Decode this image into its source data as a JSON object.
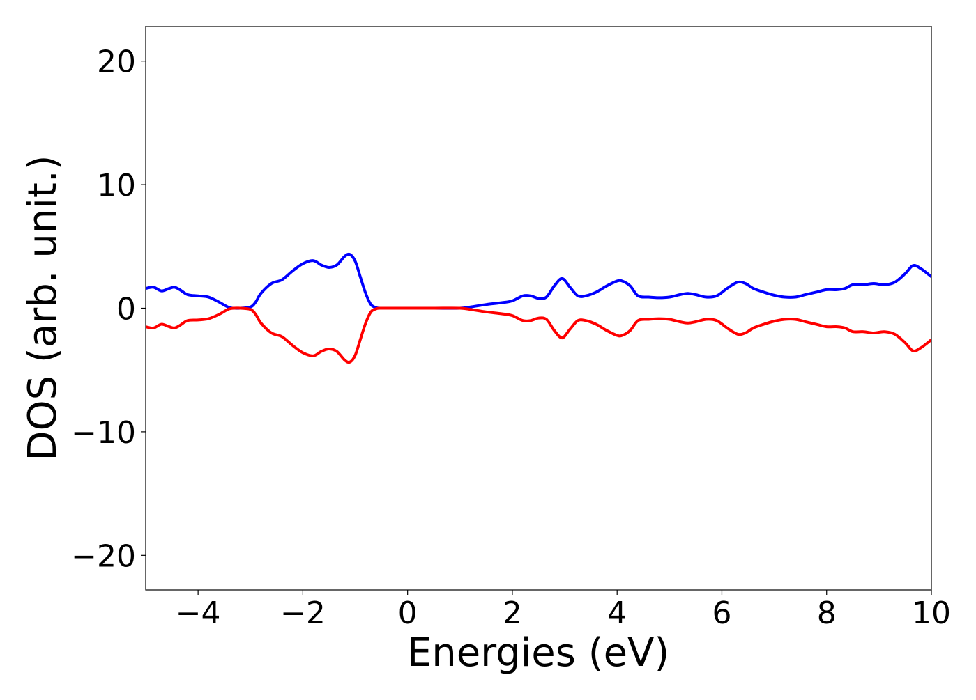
{
  "chart_data": {
    "type": "line",
    "title": "",
    "xlabel": "Energies (eV)",
    "ylabel": "DOS (arb. unit.)",
    "xlim": [
      -5,
      10
    ],
    "ylim": [
      -22.8,
      22.8
    ],
    "xticks": [
      -4,
      -2,
      0,
      2,
      4,
      6,
      8,
      10
    ],
    "xtick_labels": [
      "−4",
      "−2",
      "0",
      "2",
      "4",
      "6",
      "8",
      "10"
    ],
    "yticks": [
      20,
      10,
      0,
      -10,
      -20
    ],
    "ytick_labels": [
      "20",
      "10",
      "0",
      "−10",
      "−20"
    ],
    "grid": false,
    "legend": "none",
    "series": [
      {
        "color": "#0000ff",
        "x": [
          -5.0,
          -4.85,
          -4.7,
          -4.55,
          -4.45,
          -4.35,
          -4.2,
          -4.0,
          -3.8,
          -3.6,
          -3.4,
          -3.2,
          -3.0,
          -2.9,
          -2.8,
          -2.6,
          -2.4,
          -2.2,
          -2.0,
          -1.8,
          -1.65,
          -1.5,
          -1.35,
          -1.2,
          -1.1,
          -1.0,
          -0.9,
          -0.8,
          -0.7,
          -0.6,
          -0.5,
          0.0,
          0.5,
          1.0,
          1.2,
          1.5,
          1.8,
          2.0,
          2.2,
          2.35,
          2.5,
          2.65,
          2.8,
          2.95,
          3.1,
          3.25,
          3.4,
          3.6,
          3.8,
          4.0,
          4.1,
          4.25,
          4.4,
          4.6,
          4.8,
          5.0,
          5.2,
          5.35,
          5.5,
          5.7,
          5.9,
          6.1,
          6.3,
          6.45,
          6.6,
          6.8,
          7.0,
          7.2,
          7.4,
          7.6,
          7.8,
          8.0,
          8.2,
          8.35,
          8.5,
          8.7,
          8.9,
          9.1,
          9.3,
          9.5,
          9.65,
          9.8,
          10.0
        ],
        "y": [
          1.6,
          1.7,
          1.4,
          1.6,
          1.7,
          1.5,
          1.1,
          1.0,
          0.9,
          0.5,
          0.05,
          0.0,
          0.1,
          0.5,
          1.2,
          2.0,
          2.3,
          3.0,
          3.6,
          3.85,
          3.5,
          3.3,
          3.5,
          4.2,
          4.35,
          3.8,
          2.5,
          1.2,
          0.3,
          0.05,
          0.0,
          0.0,
          0.0,
          0.0,
          0.1,
          0.3,
          0.45,
          0.6,
          1.0,
          1.0,
          0.8,
          0.9,
          1.8,
          2.4,
          1.7,
          1.0,
          1.0,
          1.3,
          1.8,
          2.2,
          2.2,
          1.8,
          1.0,
          0.9,
          0.85,
          0.9,
          1.1,
          1.2,
          1.1,
          0.9,
          1.0,
          1.6,
          2.1,
          2.0,
          1.6,
          1.3,
          1.05,
          0.9,
          0.9,
          1.1,
          1.3,
          1.5,
          1.5,
          1.6,
          1.9,
          1.9,
          2.0,
          1.9,
          2.1,
          2.8,
          3.45,
          3.2,
          2.55
        ]
      },
      {
        "color": "#ff0000",
        "x": [
          -5.0,
          -4.85,
          -4.7,
          -4.55,
          -4.45,
          -4.35,
          -4.2,
          -4.0,
          -3.8,
          -3.6,
          -3.4,
          -3.2,
          -3.0,
          -2.9,
          -2.8,
          -2.6,
          -2.4,
          -2.2,
          -2.0,
          -1.8,
          -1.65,
          -1.5,
          -1.35,
          -1.2,
          -1.1,
          -1.0,
          -0.9,
          -0.8,
          -0.7,
          -0.6,
          -0.5,
          0.0,
          0.5,
          1.0,
          1.2,
          1.5,
          1.8,
          2.0,
          2.2,
          2.35,
          2.5,
          2.65,
          2.8,
          2.95,
          3.1,
          3.25,
          3.4,
          3.6,
          3.8,
          4.0,
          4.1,
          4.25,
          4.4,
          4.6,
          4.8,
          5.0,
          5.2,
          5.35,
          5.5,
          5.7,
          5.9,
          6.1,
          6.3,
          6.45,
          6.6,
          6.8,
          7.0,
          7.2,
          7.4,
          7.6,
          7.8,
          8.0,
          8.2,
          8.35,
          8.5,
          8.7,
          8.9,
          9.1,
          9.3,
          9.5,
          9.65,
          9.8,
          10.0
        ],
        "y": [
          -1.5,
          -1.6,
          -1.3,
          -1.5,
          -1.6,
          -1.4,
          -1.0,
          -0.95,
          -0.85,
          -0.5,
          -0.05,
          0.0,
          -0.1,
          -0.5,
          -1.2,
          -2.0,
          -2.3,
          -3.0,
          -3.6,
          -3.85,
          -3.5,
          -3.3,
          -3.5,
          -4.2,
          -4.35,
          -3.8,
          -2.5,
          -1.2,
          -0.3,
          -0.05,
          0.0,
          0.0,
          0.0,
          0.0,
          -0.1,
          -0.3,
          -0.45,
          -0.6,
          -1.0,
          -1.0,
          -0.8,
          -0.9,
          -1.8,
          -2.4,
          -1.7,
          -1.0,
          -1.0,
          -1.3,
          -1.8,
          -2.2,
          -2.2,
          -1.8,
          -1.0,
          -0.9,
          -0.85,
          -0.9,
          -1.1,
          -1.2,
          -1.1,
          -0.9,
          -1.0,
          -1.6,
          -2.1,
          -2.0,
          -1.6,
          -1.3,
          -1.05,
          -0.9,
          -0.9,
          -1.1,
          -1.3,
          -1.5,
          -1.5,
          -1.6,
          -1.9,
          -1.9,
          -2.0,
          -1.9,
          -2.1,
          -2.8,
          -3.45,
          -3.2,
          -2.55
        ]
      }
    ]
  }
}
